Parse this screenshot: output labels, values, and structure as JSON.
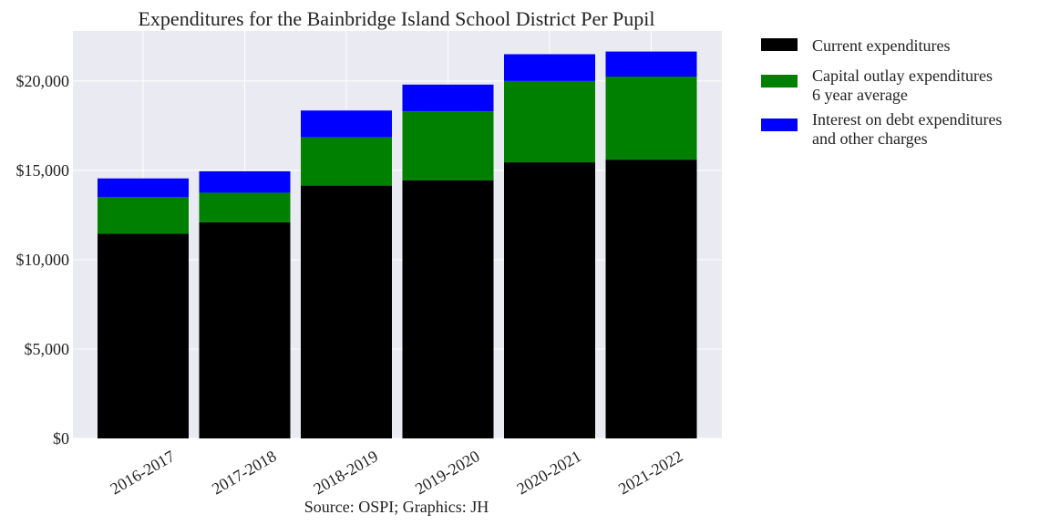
{
  "chart_data": {
    "type": "bar",
    "stacked": true,
    "title": "Expenditures for the Bainbridge Island School District Per Pupil",
    "xlabel": "",
    "ylabel": "",
    "source": "Source: OSPI; Graphics: JH",
    "categories": [
      "2016-2017",
      "2017-2018",
      "2018-2019",
      "2019-2020",
      "2020-2021",
      "2021-2022"
    ],
    "ylim": [
      0,
      22800
    ],
    "yticks": [
      0,
      5000,
      10000,
      15000,
      20000
    ],
    "ytick_labels": [
      "$0",
      "$5,000",
      "$10,000",
      "$15,000",
      "$20,000"
    ],
    "grid": true,
    "legend_position": "outside-top-right",
    "series": [
      {
        "name": "Current expenditures",
        "legend_lines": [
          "Current expenditures"
        ],
        "color": "#000000",
        "values": [
          11450,
          12100,
          14150,
          14450,
          15450,
          15600
        ]
      },
      {
        "name": "Capital outlay expenditures 6 year average",
        "legend_lines": [
          "Capital outlay expenditures",
          "6 year average"
        ],
        "color": "#008000",
        "values": [
          2050,
          1650,
          2700,
          3850,
          4550,
          4650
        ]
      },
      {
        "name": "Interest on debt expenditures and other charges",
        "legend_lines": [
          "Interest on debt expenditures",
          "and other charges"
        ],
        "color": "#0000ff",
        "values": [
          1050,
          1200,
          1500,
          1500,
          1500,
          1400
        ]
      }
    ],
    "plot_background": "#eaeaf2",
    "grid_color": "#ffffff"
  }
}
